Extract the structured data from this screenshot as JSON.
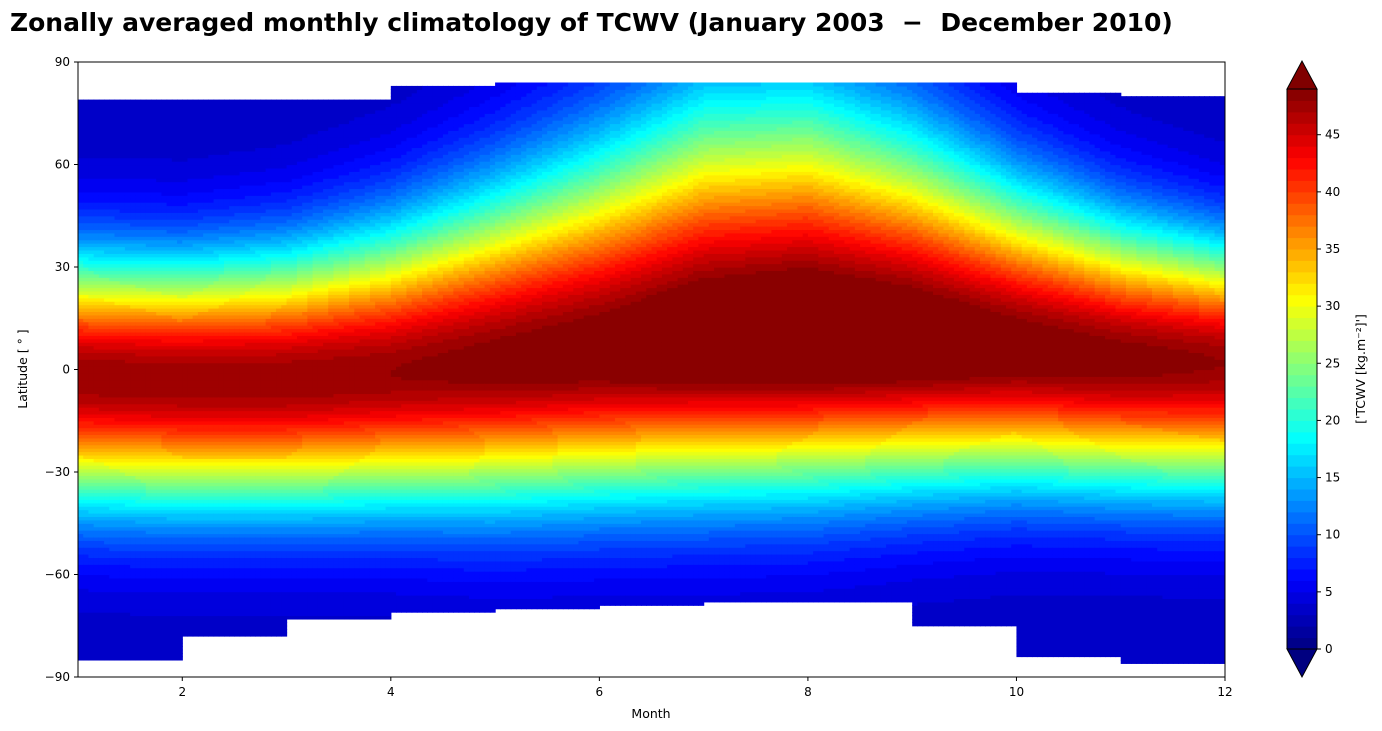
{
  "chart_data": {
    "type": "heatmap",
    "title": "Zonally averaged monthly climatology of TCWV (January 2003  −  December 2010)",
    "xlabel": "Month",
    "ylabel": "Latitude [ ° ]",
    "colorbar_label": "['TCWV [kg.m⁻²]']",
    "xlim": [
      1,
      12
    ],
    "ylim": [
      -90,
      90
    ],
    "x_ticks": [
      2,
      4,
      6,
      8,
      10,
      12
    ],
    "x_tick_labels": [
      "2",
      "4",
      "6",
      "8",
      "10",
      "12"
    ],
    "y_ticks": [
      90,
      60,
      30,
      0,
      -30,
      -60,
      -90
    ],
    "y_tick_labels": [
      "90",
      "60",
      "30",
      "0",
      "−30",
      "−60",
      "−90"
    ],
    "colorbar_range": [
      0,
      49
    ],
    "colorbar_ticks": [
      0,
      5,
      10,
      15,
      20,
      25,
      30,
      35,
      40,
      45
    ],
    "colorbar_tick_labels": [
      "0",
      "5",
      "10",
      "15",
      "20",
      "25",
      "30",
      "35",
      "40",
      "45"
    ],
    "colormap": "jet",
    "colorbar_extend": "both",
    "grid": false,
    "months": [
      1,
      2,
      3,
      4,
      5,
      6,
      7,
      8,
      9,
      10,
      11,
      12
    ],
    "lat_north_edge": [
      79,
      79,
      79,
      83,
      84,
      84,
      84,
      84,
      84,
      81,
      80,
      79
    ],
    "lat_south_edge": [
      -85,
      -78,
      -73,
      -71,
      -70,
      -69,
      -68,
      -68,
      -75,
      -84,
      -86,
      -85
    ],
    "itcz_center_lat": [
      -2,
      -3,
      -3,
      -1,
      2,
      5,
      8,
      9,
      8,
      6,
      3,
      2
    ],
    "peak_tcwv": [
      48,
      48,
      48,
      48,
      49,
      50,
      52,
      53,
      52,
      50,
      49,
      48
    ],
    "north_half_width_deg": [
      28,
      28,
      30,
      34,
      40,
      47,
      55,
      55,
      48,
      38,
      32,
      28
    ],
    "south_half_width_deg": [
      30,
      30,
      30,
      31,
      33,
      34,
      35,
      35,
      33,
      31,
      30,
      30
    ]
  }
}
